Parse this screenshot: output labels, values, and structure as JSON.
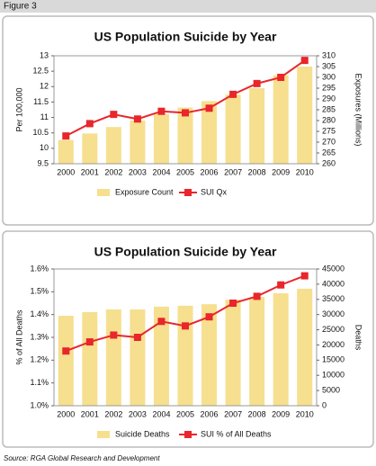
{
  "header": {
    "title": "Figure 3"
  },
  "chart_data": [
    {
      "type": "combo",
      "title": "US Population Suicide by Year",
      "categories": [
        "2000",
        "2001",
        "2002",
        "2003",
        "2004",
        "2005",
        "2006",
        "2007",
        "2008",
        "2009",
        "2010"
      ],
      "ylabel": "Per 100,000",
      "y2label": "Exposures (Millions)",
      "ylim": [
        9.5,
        13
      ],
      "yticks": [
        9.5,
        10,
        10.5,
        11,
        11.5,
        12,
        12.5,
        13
      ],
      "y2lim": [
        260,
        310
      ],
      "y2ticks": [
        260,
        265,
        270,
        275,
        280,
        285,
        290,
        295,
        300,
        305,
        310
      ],
      "grid": false,
      "legend": "bottom",
      "series": [
        {
          "name": "Exposure Count",
          "type": "bar",
          "axis": "y2",
          "color": "#f6df8e",
          "values": [
            271,
            274,
            277,
            280,
            283,
            286,
            289,
            292,
            295,
            301,
            305
          ]
        },
        {
          "name": "SUI Qx",
          "type": "line",
          "color": "#e8262b",
          "values": [
            10.4,
            10.8,
            11.1,
            10.95,
            11.2,
            11.15,
            11.3,
            11.75,
            12.1,
            12.3,
            12.85
          ]
        }
      ]
    },
    {
      "type": "combo",
      "title": "US Population Suicide by Year",
      "categories": [
        "2000",
        "2001",
        "2002",
        "2003",
        "2004",
        "2005",
        "2006",
        "2007",
        "2008",
        "2009",
        "2010"
      ],
      "ylabel": "% of All Deaths",
      "y2label": "Deaths",
      "ylim": [
        1.0,
        1.6
      ],
      "yticks": [
        {
          "value": 1.0,
          "label": "1.0%"
        },
        {
          "value": 1.1,
          "label": "1.1%"
        },
        {
          "value": 1.2,
          "label": "1.2%"
        },
        {
          "value": 1.3,
          "label": "1.3%"
        },
        {
          "value": 1.4,
          "label": "1.4%"
        },
        {
          "value": 1.5,
          "label": "1.5%"
        },
        {
          "value": 1.6,
          "label": "1.6%"
        }
      ],
      "y2lim": [
        0,
        45000
      ],
      "y2ticks": [
        0,
        5000,
        10000,
        15000,
        20000,
        25000,
        30000,
        35000,
        40000,
        45000
      ],
      "grid": false,
      "legend": "bottom",
      "series": [
        {
          "name": "Suicide Deaths",
          "type": "bar",
          "axis": "y2",
          "color": "#f6df8e",
          "values": [
            29600,
            30800,
            31700,
            31700,
            32600,
            32900,
            33400,
            34900,
            35800,
            37000,
            38500
          ]
        },
        {
          "name": "SUI % of All Deaths",
          "type": "line",
          "color": "#e8262b",
          "values": [
            1.24,
            1.28,
            1.31,
            1.3,
            1.37,
            1.35,
            1.39,
            1.45,
            1.48,
            1.53,
            1.57
          ]
        }
      ]
    }
  ],
  "footer": {
    "source": "Source: RGA Global Research and Development"
  }
}
